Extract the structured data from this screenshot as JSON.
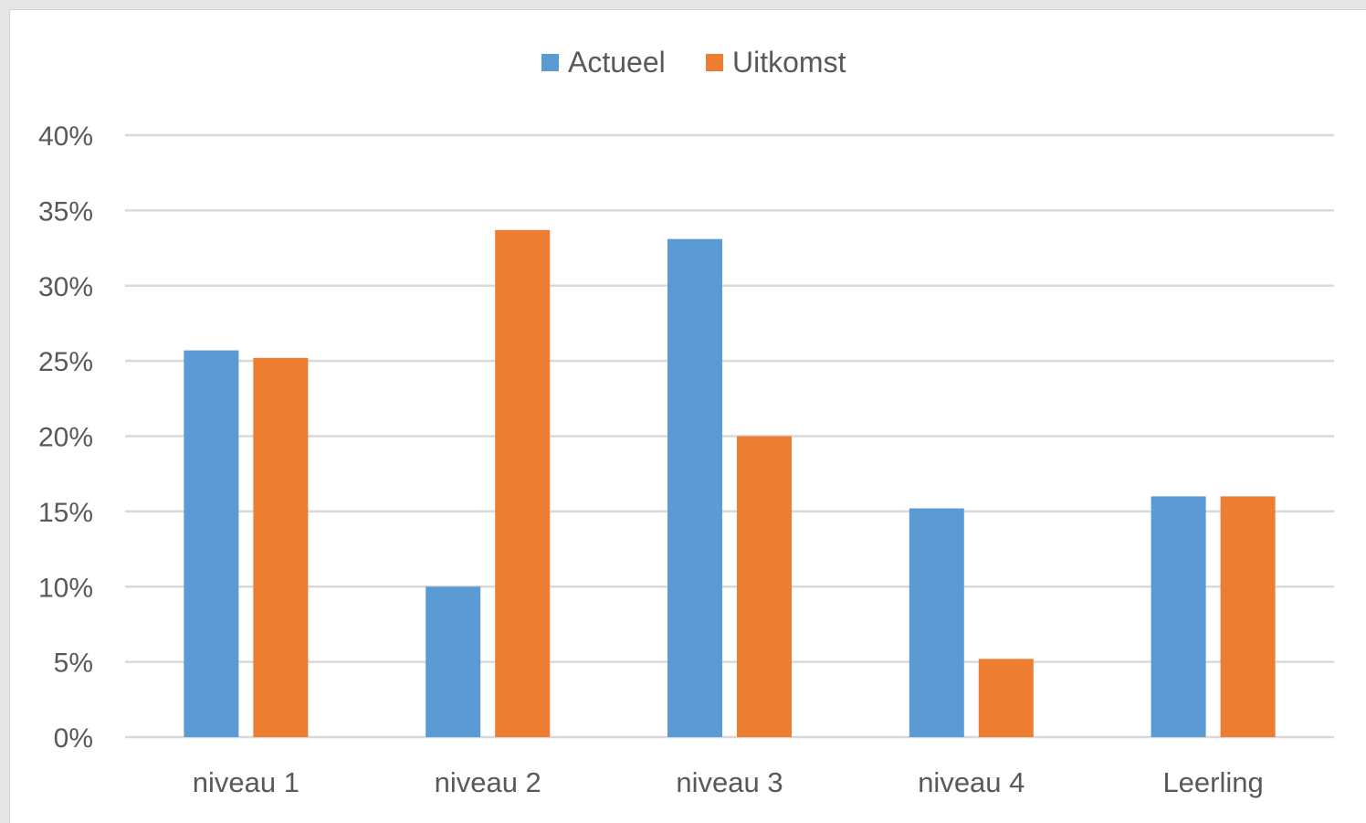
{
  "chart_data": {
    "type": "bar",
    "title": "",
    "xlabel": "",
    "ylabel": "",
    "categories": [
      "niveau 1",
      "niveau 2",
      "niveau 3",
      "niveau 4",
      "Leerling"
    ],
    "series": [
      {
        "name": "Actueel",
        "color": "#5b9bd5",
        "values": [
          25.7,
          10.0,
          33.1,
          15.2,
          16.0
        ]
      },
      {
        "name": "Uitkomst",
        "color": "#ed7d31",
        "values": [
          25.2,
          33.7,
          20.0,
          5.2,
          16.0
        ]
      }
    ],
    "ylim": [
      0,
      40
    ],
    "yticks": [
      0,
      5,
      10,
      15,
      20,
      25,
      30,
      35,
      40
    ],
    "ytick_labels": [
      "0%",
      "5%",
      "10%",
      "15%",
      "20%",
      "25%",
      "30%",
      "35%",
      "40%"
    ],
    "grid": true,
    "legend_position": "top-center",
    "gridline_color": "#d9d9d9"
  }
}
